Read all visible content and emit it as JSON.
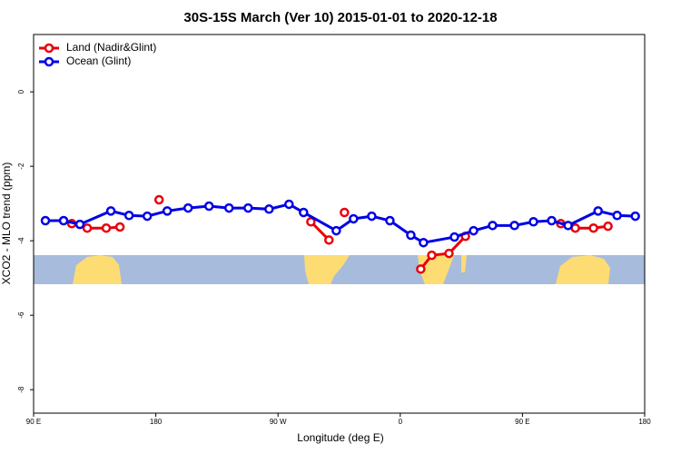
{
  "chart_data": {
    "type": "line",
    "title": "30S-15S March (Ver 10)   2015-01-01 to 2020-12-18",
    "x_label": "Longitude (deg E)",
    "y_label": "XCO2 - MLO trend (ppm)",
    "xlim": [
      90,
      540
    ],
    "ylim": [
      -8.63,
      1.54
    ],
    "xticks": [
      {
        "value": 90,
        "label": "90 E"
      },
      {
        "value": 180,
        "label": "180"
      },
      {
        "value": 270,
        "label": "90 W"
      },
      {
        "value": 360,
        "label": "0"
      },
      {
        "value": 450,
        "label": "90 E"
      },
      {
        "value": 540,
        "label": "180"
      }
    ],
    "yticks": [
      0,
      -2,
      -4,
      -6,
      -8
    ],
    "legend": "top-left",
    "series": [
      {
        "name": "Land (Nadir&Glint)",
        "color": "#e8000b",
        "x": [
          118.1,
          129.5,
          143.5,
          153.6,
          null,
          182.4,
          null,
          294.2,
          307.5,
          null,
          318.9,
          null,
          375.1,
          383.2,
          395.9,
          408,
          null,
          478.2,
          488.9,
          502.3,
          513
        ],
        "values": [
          -3.54,
          -3.66,
          -3.66,
          -3.63,
          null,
          -2.9,
          null,
          -3.49,
          -3.98,
          null,
          -3.24,
          null,
          -4.76,
          -4.39,
          -4.34,
          -3.88,
          null,
          -3.54,
          -3.66,
          -3.66,
          -3.61
        ]
      },
      {
        "name": "Ocean (Glint)",
        "color": "#0000e6",
        "x": [
          98.7,
          112.1,
          124.1,
          146.9,
          160.3,
          173.7,
          188.4,
          203.8,
          219.2,
          233.9,
          248,
          263.4,
          278.1,
          288.8,
          312.9,
          325.6,
          339,
          352.4,
          367.8,
          377.1,
          399.9,
          414,
          428,
          444.1,
          458.1,
          471.5,
          483.6,
          505.7,
          519.7,
          533.1
        ],
        "values": [
          -3.46,
          -3.46,
          -3.56,
          -3.2,
          -3.32,
          -3.34,
          -3.2,
          -3.12,
          -3.07,
          -3.12,
          -3.12,
          -3.15,
          -3.02,
          -3.24,
          -3.73,
          -3.41,
          -3.34,
          -3.46,
          -3.85,
          -4.05,
          -3.9,
          -3.73,
          -3.59,
          -3.59,
          -3.49,
          -3.46,
          -3.59,
          -3.2,
          -3.32,
          -3.34
        ]
      }
    ]
  }
}
